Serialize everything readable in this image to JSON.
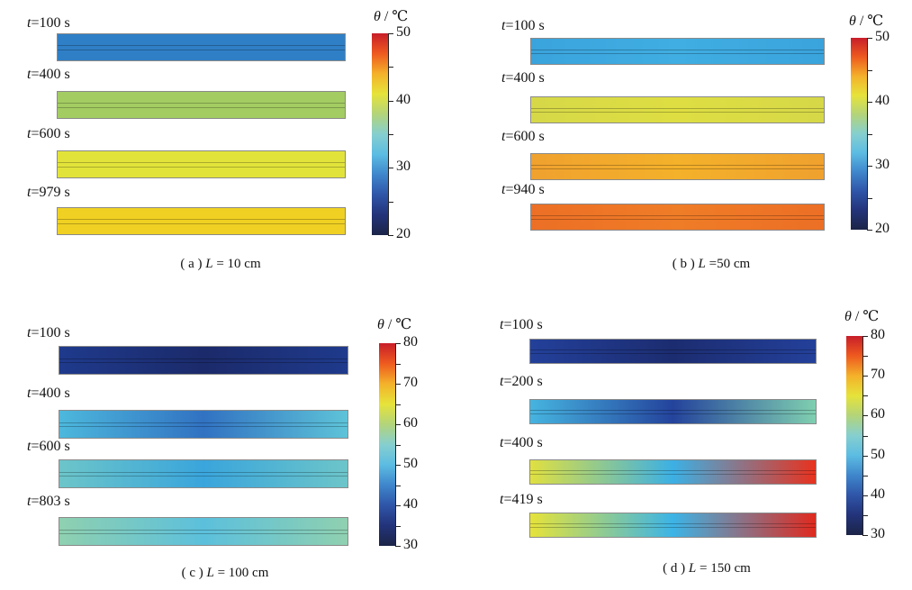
{
  "chart_data": {
    "type": "heatmap",
    "colormap": [
      "#1b2447",
      "#23337a",
      "#2f55a8",
      "#3f86cc",
      "#5cbce2",
      "#86cfcf",
      "#b3d47a",
      "#e6e33a",
      "#f4b12a",
      "#ee5a1f",
      "#c81e2a"
    ],
    "panels": [
      {
        "caption_prefix": "( a )",
        "caption_var": "L",
        "caption_rest": " = 10 cm",
        "colorbar_title_var": "θ",
        "colorbar_title_unit": " / ℃",
        "range": [
          20,
          50
        ],
        "ticks": [
          "50",
          "40",
          "30",
          "20"
        ],
        "frames": [
          {
            "t": "100 s",
            "colors": [
              "#2f7fc6",
              "#2f7fc6",
              "#2f7fc6"
            ]
          },
          {
            "t": "400 s",
            "colors": [
              "#a3cc62",
              "#a3cc62",
              "#a3cc62"
            ]
          },
          {
            "t": "600 s",
            "colors": [
              "#e2e33a",
              "#e2e33a",
              "#e2e33a"
            ]
          },
          {
            "t": "979 s",
            "colors": [
              "#f0d123",
              "#f0d123",
              "#f0d123"
            ]
          }
        ]
      },
      {
        "caption_prefix": "( b )",
        "caption_var": "L",
        "caption_rest": " =50 cm",
        "colorbar_title_var": "θ",
        "colorbar_title_unit": " / ℃",
        "range": [
          20,
          50
        ],
        "ticks": [
          "50",
          "40",
          "30",
          "20"
        ],
        "frames": [
          {
            "t": "100 s",
            "colors": [
              "#3aa3dc",
              "#40aee2",
              "#3aa3dc"
            ]
          },
          {
            "t": "400 s",
            "colors": [
              "#d6d848",
              "#dede42",
              "#d6d848"
            ]
          },
          {
            "t": "600 s",
            "colors": [
              "#f0a12e",
              "#f4b12a",
              "#f0a12e"
            ]
          },
          {
            "t": "940 s",
            "colors": [
              "#ec6f25",
              "#ef7c27",
              "#ec6f25"
            ]
          }
        ]
      },
      {
        "caption_prefix": "( c )",
        "caption_var": "L",
        "caption_rest": " = 100 cm",
        "colorbar_title_var": "θ",
        "colorbar_title_unit": " / ℃",
        "range": [
          30,
          80
        ],
        "ticks": [
          "80",
          "70",
          "60",
          "50",
          "40",
          "30"
        ],
        "frames": [
          {
            "t": "100 s",
            "colors": [
              "#1f3a8c",
              "#1b2a6a",
              "#1f3a8c"
            ]
          },
          {
            "t": "400 s",
            "colors": [
              "#4db8dc",
              "#3172c2",
              "#5ec3d8"
            ]
          },
          {
            "t": "600 s",
            "colors": [
              "#6cc5c9",
              "#3aa5dc",
              "#6cc5c9"
            ]
          },
          {
            "t": "803 s",
            "colors": [
              "#8fd0b0",
              "#5cc0dc",
              "#8fd0b0"
            ]
          }
        ]
      },
      {
        "caption_prefix": "( d )",
        "caption_var": "L",
        "caption_rest": " = 150 cm",
        "colorbar_title_var": "θ",
        "colorbar_title_unit": " / ℃",
        "range": [
          30,
          80
        ],
        "ticks": [
          "80",
          "70",
          "60",
          "50",
          "40",
          "30"
        ],
        "frames": [
          {
            "t": "100 s",
            "colors": [
              "#23409a",
              "#1c2c70",
              "#23409a"
            ]
          },
          {
            "t": "200 s",
            "colors": [
              "#46b4e0",
              "#24439c",
              "#7fcfb0"
            ]
          },
          {
            "t": "400 s",
            "colors": [
              "#e0e040",
              "#3cb0e4",
              "#e8321e"
            ]
          },
          {
            "t": "419 s",
            "colors": [
              "#e6e33a",
              "#3cb4e6",
              "#e02a1e"
            ]
          }
        ]
      }
    ]
  }
}
